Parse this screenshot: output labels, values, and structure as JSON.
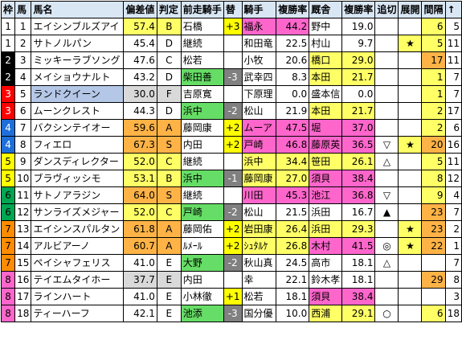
{
  "headers": [
    "枠",
    "馬",
    "馬名",
    "偏差値",
    "判定",
    "前走騎手",
    "替",
    "騎手",
    "複勝率",
    "厩舎",
    "複勝率",
    "追切",
    "展開",
    "間隔",
    "↑"
  ],
  "rows": [
    {
      "waku": "1",
      "uma": "1",
      "name": "エイシンブルズアイ",
      "hensa": "57.4",
      "hantei": "B",
      "prev": "石橋",
      "kae": "+3",
      "jockey": "福永",
      "j_rate": "44.2",
      "stable": "野中",
      "s_rate": "19.0",
      "oikiri": "",
      "tenkai": "",
      "kankaku": "6",
      "arrow": "5"
    },
    {
      "waku": "1",
      "uma": "2",
      "name": "サトノルパン",
      "hensa": "45.4",
      "hantei": "D",
      "prev": "継続",
      "kae": "",
      "jockey": "和田竜",
      "j_rate": "22.5",
      "stable": "村山",
      "s_rate": "9.7",
      "oikiri": "",
      "tenkai": "★",
      "kankaku": "5",
      "arrow": "11"
    },
    {
      "waku": "2",
      "uma": "3",
      "name": "ミッキーラブソング",
      "hensa": "47.6",
      "hantei": "C",
      "prev": "松若",
      "kae": "",
      "jockey": "小牧",
      "j_rate": "20.6",
      "stable": "橋口",
      "s_rate": "29.0",
      "oikiri": "",
      "tenkai": "",
      "kankaku": "17",
      "arrow": "11"
    },
    {
      "waku": "2",
      "uma": "4",
      "name": "メイショウナルト",
      "hensa": "43.2",
      "hantei": "D",
      "prev": "柴田善",
      "kae": "-3",
      "jockey": "武幸四",
      "j_rate": "8.3",
      "stable": "本田",
      "s_rate": "21.7",
      "oikiri": "",
      "tenkai": "",
      "kankaku": "1",
      "arrow": "7"
    },
    {
      "waku": "3",
      "uma": "5",
      "name": "ランドクイーン",
      "hensa": "30.0",
      "hantei": "F",
      "prev": "吉原寛",
      "kae": "",
      "jockey": "下原理",
      "j_rate": "0.0",
      "stable": "盛本信",
      "s_rate": "0.0",
      "oikiri": "",
      "tenkai": "",
      "kankaku": "1",
      "arrow": "7"
    },
    {
      "waku": "3",
      "uma": "6",
      "name": "ムーンクレスト",
      "hensa": "44.3",
      "hantei": "D",
      "prev": "浜中",
      "kae": "-2",
      "jockey": "松山",
      "j_rate": "21.9",
      "stable": "本田",
      "s_rate": "21.7",
      "oikiri": "",
      "tenkai": "",
      "kankaku": "2",
      "arrow": "17"
    },
    {
      "waku": "4",
      "uma": "7",
      "name": "バクシンテイオー",
      "hensa": "59.6",
      "hantei": "A",
      "prev": "藤岡康",
      "kae": "+2",
      "jockey": "ムーア",
      "j_rate": "47.5",
      "stable": "堀",
      "s_rate": "37.0",
      "oikiri": "",
      "tenkai": "",
      "kankaku": "2",
      "arrow": "6"
    },
    {
      "waku": "4",
      "uma": "8",
      "name": "フィエロ",
      "hensa": "67.3",
      "hantei": "S",
      "prev": "内田",
      "kae": "+2",
      "jockey": "戸崎",
      "j_rate": "46.8",
      "stable": "藤原英",
      "s_rate": "36.5",
      "oikiri": "▽",
      "tenkai": "★",
      "kankaku": "20",
      "arrow": "16"
    },
    {
      "waku": "5",
      "uma": "9",
      "name": "ダンスディレクター",
      "hensa": "52.0",
      "hantei": "C",
      "prev": "継続",
      "kae": "",
      "jockey": "浜中",
      "j_rate": "34.4",
      "stable": "笹田",
      "s_rate": "26.1",
      "oikiri": "△",
      "tenkai": "",
      "kankaku": "5",
      "arrow": "11"
    },
    {
      "waku": "5",
      "uma": "10",
      "name": "ブラヴィッシモ",
      "hensa": "53.1",
      "hantei": "B",
      "prev": "浜中",
      "kae": "-1",
      "jockey": "藤岡康",
      "j_rate": "27.0",
      "stable": "須貝",
      "s_rate": "38.4",
      "oikiri": "",
      "tenkai": "",
      "kankaku": "8",
      "arrow": "12"
    },
    {
      "waku": "6",
      "uma": "11",
      "name": "サトノアラジン",
      "hensa": "64.0",
      "hantei": "S",
      "prev": "継続",
      "kae": "",
      "jockey": "川田",
      "j_rate": "45.3",
      "stable": "池江",
      "s_rate": "36.8",
      "oikiri": "▽",
      "tenkai": "",
      "kankaku": "9",
      "arrow": "4"
    },
    {
      "waku": "6",
      "uma": "12",
      "name": "サンライズメジャー",
      "hensa": "52.0",
      "hantei": "C",
      "prev": "戸崎",
      "kae": "-2",
      "jockey": "松山",
      "j_rate": "21.5",
      "stable": "浜田",
      "s_rate": "16.7",
      "oikiri": "▲",
      "tenkai": "",
      "kankaku": "23",
      "arrow": "7"
    },
    {
      "waku": "7",
      "uma": "13",
      "name": "エイシンスパルタン",
      "hensa": "61.8",
      "hantei": "A",
      "prev": "藤岡佑",
      "kae": "+2",
      "jockey": "岩田康",
      "j_rate": "26.4",
      "stable": "浜田",
      "s_rate": "29.3",
      "oikiri": "",
      "tenkai": "★",
      "kankaku": "23",
      "arrow": "2"
    },
    {
      "waku": "7",
      "uma": "14",
      "name": "アルビアーノ",
      "hensa": "60.7",
      "hantei": "A",
      "prev": "ﾙﾒｰﾙ",
      "kae": "+2",
      "jockey": "ｼｭﾀﾙｹ",
      "j_rate": "26.8",
      "stable": "木村",
      "s_rate": "41.5",
      "oikiri": "◎",
      "tenkai": "★",
      "kankaku": "22",
      "arrow": "1"
    },
    {
      "waku": "7",
      "uma": "15",
      "name": "ペイシャフェリス",
      "hensa": "41.0",
      "hantei": "E",
      "prev": "大野",
      "kae": "-2",
      "jockey": "秋山真",
      "j_rate": "24.5",
      "stable": "高市",
      "s_rate": "18.1",
      "oikiri": "△",
      "tenkai": "",
      "kankaku": "",
      "arrow": "7"
    },
    {
      "waku": "8",
      "uma": "16",
      "name": "テイエムタイホー",
      "hensa": "37.7",
      "hantei": "E",
      "prev": "内田",
      "kae": "",
      "jockey": "幸",
      "j_rate": "22.1",
      "stable": "鈴木孝",
      "s_rate": "18.1",
      "oikiri": "",
      "tenkai": "",
      "kankaku": "29",
      "arrow": "8"
    },
    {
      "waku": "8",
      "uma": "17",
      "name": "ラインハート",
      "hensa": "41.0",
      "hantei": "E",
      "prev": "小林徹",
      "kae": "+1",
      "jockey": "松若",
      "j_rate": "18.1",
      "stable": "須貝",
      "s_rate": "38.4",
      "oikiri": "",
      "tenkai": "",
      "kankaku": "",
      "arrow": "3"
    },
    {
      "waku": "8",
      "uma": "18",
      "name": "ティーハーフ",
      "hensa": "42.1",
      "hantei": "E",
      "prev": "池添",
      "kae": "-3",
      "jockey": "国分優",
      "j_rate": "10.0",
      "stable": "西浦",
      "s_rate": "29.1",
      "oikiri": "○",
      "tenkai": "",
      "kankaku": "6",
      "arrow": "18"
    }
  ],
  "colors": {
    "header_bg": "#d9e7f5",
    "waku": [
      "#ffffff",
      "#000000",
      "#ff0000",
      "#1e6fd9",
      "#ffff00",
      "#00a651",
      "#ff8c00",
      "#ff66cc"
    ],
    "hensa_high": "#ffb347",
    "hensa_mid": "#ffff66",
    "hensa_low": "#d9d9d9",
    "jockey_good": "#ff66cc",
    "jockey_ok": "#ffff66",
    "stable_good": "#ff66cc",
    "stable_ok": "#ffff66",
    "change_plus": "#ffff00",
    "change_minus": "#808080",
    "prev_highlight": "#66dd66",
    "kankaku_bg": "#ffff66",
    "kankaku_hi": "#ffb347"
  }
}
